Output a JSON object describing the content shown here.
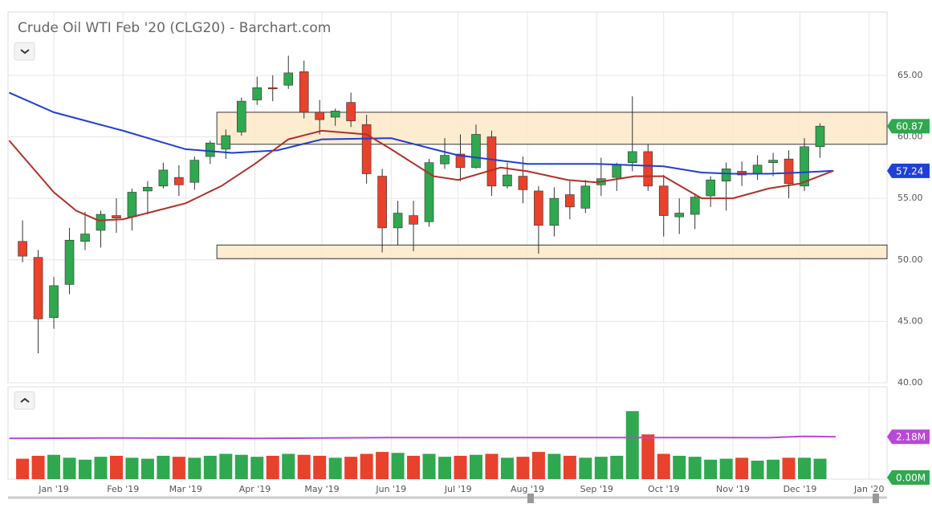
{
  "chart_data": {
    "type": "candlestick",
    "title": "Crude Oil WTI Feb '20 (CLG20) - Barchart.com",
    "xlim": [
      -20.5,
      373
    ],
    "ylim": [
      40,
      70.15
    ],
    "xticks": [
      {
        "value": 0,
        "label": "Jan '19"
      },
      {
        "value": 31,
        "label": "Feb '19"
      },
      {
        "value": 59,
        "label": "Mar '19"
      },
      {
        "value": 90,
        "label": "Apr '19"
      },
      {
        "value": 120,
        "label": "May '19"
      },
      {
        "value": 151,
        "label": "Jun '19"
      },
      {
        "value": 181,
        "label": "Jul '19"
      },
      {
        "value": 212,
        "label": "Aug '19"
      },
      {
        "value": 243,
        "label": "Sep '19"
      },
      {
        "value": 273,
        "label": "Oct '19"
      },
      {
        "value": 304,
        "label": "Nov '19"
      },
      {
        "value": 334,
        "label": "Dec '19"
      },
      {
        "value": 365,
        "label": "Jan '20"
      }
    ],
    "yticks": [
      {
        "value": 65,
        "label": "65.00"
      },
      {
        "value": 60,
        "label": "60.00"
      },
      {
        "value": 55,
        "label": "55.00"
      },
      {
        "value": 50,
        "label": "50.00"
      },
      {
        "value": 45,
        "label": "45.00"
      },
      {
        "value": 40,
        "label": "40.00"
      }
    ],
    "grid": true,
    "up_color": "#2fa84f",
    "down_color": "#e8412c",
    "candles": {
      "x": [
        -14,
        -7,
        0,
        7,
        14,
        21,
        28,
        35,
        42,
        49,
        56,
        63,
        70,
        77,
        84,
        91,
        98,
        105,
        112,
        119,
        126,
        133,
        140,
        147,
        154,
        161,
        168,
        175,
        182,
        189,
        196,
        203,
        210,
        217,
        224,
        231,
        238,
        245,
        252,
        259,
        266,
        273,
        280,
        287,
        294,
        301,
        308,
        315,
        322,
        329,
        336,
        343
      ],
      "open": [
        51.5,
        50.2,
        45.3,
        48.0,
        51.5,
        52.4,
        53.6,
        53.5,
        55.6,
        56.0,
        56.7,
        56.3,
        58.4,
        59.0,
        60.4,
        63.0,
        64.0,
        64.2,
        65.3,
        62.0,
        61.6,
        62.8,
        61.0,
        56.8,
        52.6,
        53.6,
        53.1,
        57.8,
        58.6,
        57.5,
        60.0,
        56.0,
        56.8,
        55.6,
        52.8,
        55.3,
        54.2,
        56.1,
        56.7,
        57.9,
        58.8,
        56.0,
        53.5,
        53.7,
        55.2,
        56.4,
        57.2,
        57.0,
        57.9,
        58.2,
        56.0,
        59.2
      ],
      "high": [
        53.2,
        50.8,
        48.6,
        52.6,
        53.9,
        54.0,
        55.0,
        55.8,
        56.4,
        57.9,
        57.7,
        58.4,
        59.7,
        60.6,
        63.2,
        64.9,
        65.0,
        66.6,
        66.2,
        63.0,
        62.3,
        63.6,
        61.8,
        57.4,
        54.8,
        54.8,
        58.2,
        59.9,
        60.2,
        61.0,
        60.5,
        57.9,
        58.4,
        56.0,
        55.9,
        56.4,
        56.5,
        58.3,
        57.9,
        63.3,
        59.4,
        56.9,
        55.0,
        55.4,
        56.8,
        57.9,
        58.0,
        58.5,
        58.7,
        58.9,
        59.9,
        61.1
      ],
      "low": [
        49.8,
        42.4,
        44.4,
        47.2,
        50.8,
        51.0,
        52.2,
        52.4,
        53.7,
        55.8,
        55.2,
        55.7,
        57.8,
        58.2,
        60.1,
        62.6,
        62.9,
        63.9,
        61.5,
        60.2,
        60.9,
        60.8,
        56.2,
        50.6,
        51.2,
        50.7,
        52.7,
        57.4,
        56.4,
        57.4,
        55.2,
        55.8,
        54.6,
        50.5,
        51.9,
        53.3,
        53.8,
        55.2,
        55.6,
        57.2,
        55.6,
        51.9,
        52.1,
        52.5,
        54.3,
        54.0,
        56.0,
        56.5,
        56.8,
        55.0,
        55.6,
        58.3
      ],
      "close": [
        50.3,
        45.2,
        47.9,
        51.6,
        52.1,
        53.7,
        53.4,
        55.5,
        55.9,
        57.3,
        56.1,
        58.1,
        59.5,
        60.1,
        62.9,
        64.0,
        63.9,
        65.2,
        62.0,
        61.4,
        62.1,
        61.3,
        57.0,
        52.6,
        53.8,
        52.9,
        57.9,
        58.5,
        57.5,
        60.2,
        56.0,
        56.9,
        55.7,
        52.8,
        55.0,
        54.3,
        56.0,
        56.6,
        57.7,
        58.8,
        56.0,
        53.6,
        53.8,
        55.1,
        56.5,
        57.4,
        56.9,
        57.7,
        58.1,
        56.2,
        59.2,
        60.87
      ]
    },
    "ma200": {
      "color": "#1f3fd6",
      "x": [
        -20,
        0,
        31,
        59,
        80,
        100,
        120,
        151,
        170,
        181,
        212,
        243,
        273,
        290,
        304,
        320,
        334,
        349
      ],
      "values": [
        63.6,
        62.0,
        60.5,
        59.0,
        58.7,
        58.9,
        59.8,
        59.9,
        59.0,
        58.5,
        57.8,
        57.8,
        57.6,
        57.1,
        57.0,
        57.0,
        57.1,
        57.24
      ]
    },
    "ma50": {
      "color": "#b0302a",
      "x": [
        -20,
        0,
        10,
        20,
        31,
        59,
        75,
        90,
        105,
        120,
        140,
        151,
        170,
        181,
        200,
        212,
        230,
        243,
        260,
        273,
        290,
        304,
        320,
        334,
        349
      ],
      "values": [
        59.7,
        55.5,
        54.0,
        53.2,
        53.3,
        54.6,
        56.0,
        57.8,
        59.8,
        60.5,
        60.2,
        59.0,
        56.8,
        56.5,
        57.5,
        57.2,
        56.5,
        56.3,
        56.8,
        56.8,
        55.0,
        55.0,
        55.8,
        56.2,
        57.24
      ]
    },
    "zones": [
      {
        "x0": 73,
        "low": 59.4,
        "high": 62.0
      },
      {
        "x0": 73,
        "low": 50.1,
        "high": 51.2
      }
    ],
    "last_price": 60.87,
    "ma200_last": 57.24,
    "volume": {
      "vlim": [
        0,
        4.75
      ],
      "values": [
        1.05,
        1.2,
        1.25,
        1.1,
        1.0,
        1.15,
        1.2,
        1.1,
        1.05,
        1.2,
        1.15,
        1.1,
        1.2,
        1.3,
        1.25,
        1.15,
        1.2,
        1.3,
        1.25,
        1.2,
        1.1,
        1.15,
        1.3,
        1.4,
        1.35,
        1.2,
        1.3,
        1.15,
        1.2,
        1.25,
        1.3,
        1.1,
        1.15,
        1.4,
        1.3,
        1.2,
        1.1,
        1.15,
        1.2,
        3.5,
        2.3,
        1.3,
        1.2,
        1.15,
        1.0,
        1.05,
        1.1,
        0.95,
        1.0,
        1.1,
        1.1,
        1.05
      ],
      "avg_x": [
        -20,
        30,
        90,
        150,
        210,
        270,
        320,
        335,
        350
      ],
      "avg": [
        2.1,
        2.12,
        2.1,
        2.14,
        2.14,
        2.14,
        2.13,
        2.2,
        2.18
      ],
      "avg_color": "#b848d6"
    },
    "volume_avg_marker": {
      "value": 2.18,
      "label": "2.18M"
    },
    "volume_zero_marker": {
      "value": 0,
      "label": "0.00M"
    }
  }
}
